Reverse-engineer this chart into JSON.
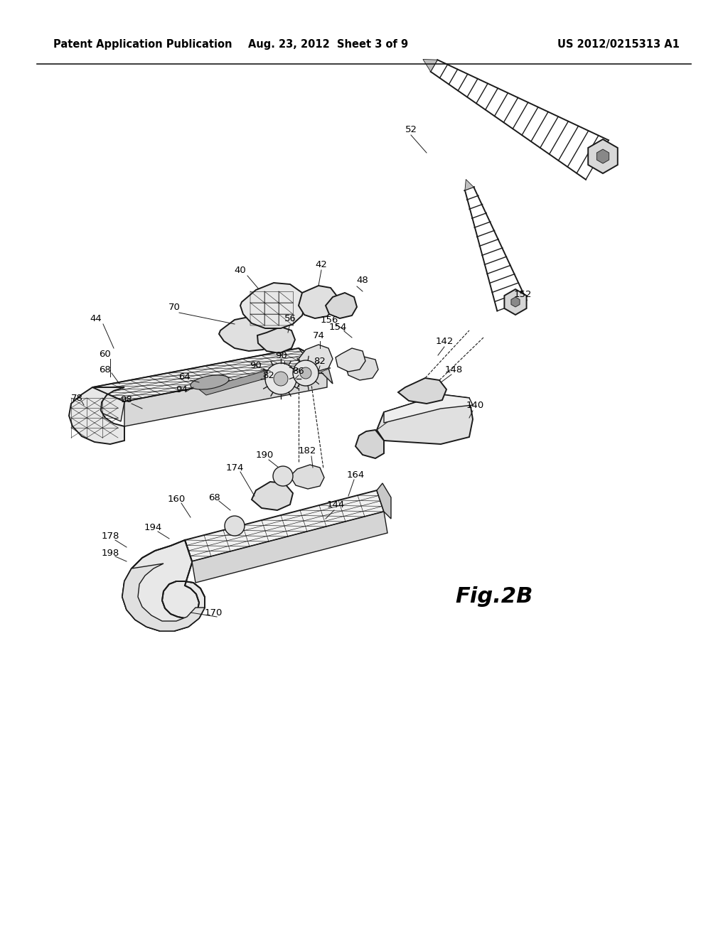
{
  "title_left": "Patent Application Publication",
  "title_center": "Aug. 23, 2012  Sheet 3 of 9",
  "title_right": "US 2012/0215313 A1",
  "fig_label": "Fig.2B",
  "background_color": "#ffffff",
  "line_color": "#1a1a1a",
  "text_color": "#000000",
  "header_fontsize": 10.5,
  "label_fontsize": 9.5,
  "fig_label_fontsize": 22
}
